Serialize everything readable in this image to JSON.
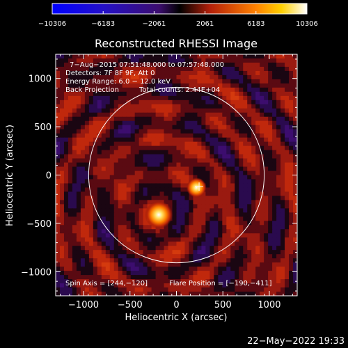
{
  "chart_data": {
    "type": "heatmap",
    "title": "Reconstructed RHESSI Image",
    "xlabel": "Heliocentric X (arcsec)",
    "ylabel": "Heliocentric Y (arcsec)",
    "xlim": [
      -1300,
      1300
    ],
    "ylim": [
      -1250,
      1250
    ],
    "x_ticks": [
      -1000,
      -500,
      0,
      500,
      1000
    ],
    "y_ticks": [
      -1000,
      -500,
      0,
      500,
      1000
    ],
    "x_tick_labels": [
      "−1000",
      "−500",
      "0",
      "500",
      "1000"
    ],
    "y_tick_labels": [
      "−1000",
      "−500",
      "0",
      "500",
      "1000"
    ],
    "colorbar": {
      "range": [
        -10306,
        10306
      ],
      "tick_values": [
        -10306,
        -6183,
        -2061,
        2061,
        6183,
        10306
      ],
      "tick_labels": [
        "−10306",
        "−6183",
        "−2061",
        "2061",
        "6183",
        "10306"
      ],
      "colormap": [
        "#0000ff",
        "#3c0d6e",
        "#000000",
        "#b4200a",
        "#ff8200",
        "#ffffff"
      ]
    },
    "annotations": {
      "time_range": "7−Aug−2015 07:51:48.000 to 07:57:48.000",
      "detectors": "Detectors: 7F 8F 9F, Att 0",
      "energy_range": "Energy Range: 6.0 − 12.0 keV",
      "method": "Back Projection",
      "total_counts": "Total counts: 2.44E+04",
      "spin_axis": "Spin Axis = [244,−120]",
      "flare_position": "Flare Position = [−190,−411]"
    },
    "limb_circle": {
      "center": [
        0,
        0
      ],
      "radius": 945
    },
    "sources": [
      {
        "x": -190,
        "y": -411,
        "peak": 10306
      },
      {
        "x": 215,
        "y": -130,
        "peak": 7500
      }
    ],
    "marker": {
      "shape": "cross",
      "x": 244,
      "y": -120
    }
  },
  "footer": {
    "timestamp": "22−May−2022 19:33"
  }
}
